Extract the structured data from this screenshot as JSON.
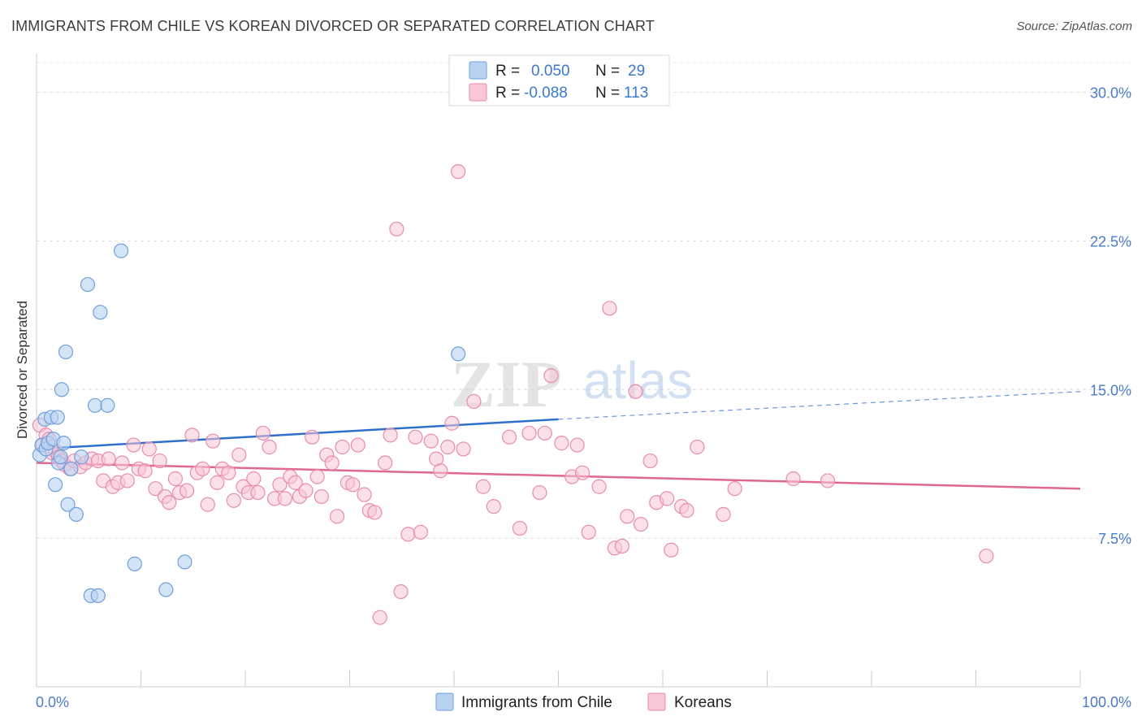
{
  "header": {
    "title": "IMMIGRANTS FROM CHILE VS KOREAN DIVORCED OR SEPARATED CORRELATION CHART",
    "source": "Source: ZipAtlas.com"
  },
  "watermark": {
    "zip": "ZIP",
    "atlas": "atlas"
  },
  "legend": {
    "rows": [
      {
        "r_label": "R =",
        "r_value": "0.050",
        "n_label": "N =",
        "n_value": "29"
      },
      {
        "r_label": "R =",
        "r_value": "-0.088",
        "n_label": "N =",
        "n_value": "113"
      }
    ]
  },
  "bottom_legend": {
    "items": [
      "Immigrants from Chile",
      "Koreans"
    ]
  },
  "chart_data": {
    "type": "scatter",
    "xlabel": "",
    "ylabel": "Divorced or Separated",
    "xlim": [
      0,
      100
    ],
    "ylim": [
      0,
      31.5
    ],
    "x_tick_labels": [
      "0.0%",
      "100.0%"
    ],
    "y_ticks": [
      7.5,
      15,
      22.5,
      30
    ],
    "y_tick_labels": [
      "7.5%",
      "15.0%",
      "22.5%",
      "30.0%"
    ],
    "grid": true,
    "legend_position": "top-center",
    "colors": {
      "chile_fill": "#b8d2f2",
      "chile_stroke": "#6f9fdc",
      "chile_line": "#2f6fcc",
      "korean_fill": "#f8c6d6",
      "korean_stroke": "#e88cab",
      "korean_line": "#e06794"
    },
    "series": [
      {
        "name": "Immigrants from Chile",
        "trend": {
          "x0": 0,
          "y0": 12.0,
          "x1": 50,
          "y1": 13.5,
          "dash_to": 100,
          "dash_y": 14.9
        },
        "points": [
          [
            0.3,
            11.7
          ],
          [
            0.5,
            12.2
          ],
          [
            0.8,
            13.5
          ],
          [
            0.9,
            12.0
          ],
          [
            1.1,
            12.3
          ],
          [
            1.4,
            13.6
          ],
          [
            1.6,
            12.5
          ],
          [
            1.8,
            10.2
          ],
          [
            2.0,
            13.6
          ],
          [
            2.1,
            11.3
          ],
          [
            2.3,
            11.6
          ],
          [
            2.4,
            15.0
          ],
          [
            2.6,
            12.3
          ],
          [
            2.8,
            16.9
          ],
          [
            3.0,
            9.2
          ],
          [
            3.3,
            11.0
          ],
          [
            3.8,
            8.7
          ],
          [
            4.3,
            11.6
          ],
          [
            4.9,
            20.3
          ],
          [
            5.2,
            4.6
          ],
          [
            5.6,
            14.2
          ],
          [
            5.9,
            4.6
          ],
          [
            6.1,
            18.9
          ],
          [
            6.8,
            14.2
          ],
          [
            8.1,
            22.0
          ],
          [
            9.4,
            6.2
          ],
          [
            12.4,
            4.9
          ],
          [
            14.2,
            6.3
          ],
          [
            40.4,
            16.8
          ]
        ]
      },
      {
        "name": "Koreans",
        "trend": {
          "x0": 0,
          "y0": 11.3,
          "x1": 100,
          "y1": 10.0
        },
        "points": [
          [
            0.3,
            13.2
          ],
          [
            0.6,
            12.2
          ],
          [
            0.9,
            12.7
          ],
          [
            1.2,
            12.5
          ],
          [
            1.5,
            11.8
          ],
          [
            1.8,
            11.9
          ],
          [
            2.1,
            11.6
          ],
          [
            2.4,
            11.4
          ],
          [
            2.7,
            11.2
          ],
          [
            3.2,
            11.0
          ],
          [
            3.6,
            11.4
          ],
          [
            4.2,
            11.1
          ],
          [
            4.7,
            11.3
          ],
          [
            5.3,
            11.5
          ],
          [
            5.9,
            11.4
          ],
          [
            6.4,
            10.4
          ],
          [
            6.9,
            11.5
          ],
          [
            7.3,
            10.1
          ],
          [
            7.8,
            10.3
          ],
          [
            8.2,
            11.3
          ],
          [
            8.7,
            10.4
          ],
          [
            9.3,
            12.2
          ],
          [
            9.8,
            11.0
          ],
          [
            10.4,
            10.9
          ],
          [
            10.8,
            12.0
          ],
          [
            11.4,
            10.0
          ],
          [
            11.8,
            11.4
          ],
          [
            12.3,
            9.6
          ],
          [
            12.7,
            9.3
          ],
          [
            13.3,
            10.5
          ],
          [
            13.7,
            9.8
          ],
          [
            14.4,
            9.9
          ],
          [
            14.9,
            12.7
          ],
          [
            15.4,
            10.8
          ],
          [
            15.9,
            11.0
          ],
          [
            16.4,
            9.2
          ],
          [
            16.9,
            12.4
          ],
          [
            17.3,
            10.3
          ],
          [
            17.8,
            11.0
          ],
          [
            18.4,
            10.8
          ],
          [
            18.9,
            9.4
          ],
          [
            19.4,
            11.7
          ],
          [
            19.8,
            10.1
          ],
          [
            20.3,
            9.8
          ],
          [
            20.8,
            10.5
          ],
          [
            21.2,
            9.8
          ],
          [
            21.7,
            12.8
          ],
          [
            22.3,
            12.1
          ],
          [
            22.8,
            9.5
          ],
          [
            23.3,
            10.2
          ],
          [
            23.8,
            9.5
          ],
          [
            24.3,
            10.6
          ],
          [
            24.8,
            10.3
          ],
          [
            25.2,
            9.6
          ],
          [
            25.8,
            9.9
          ],
          [
            26.4,
            12.6
          ],
          [
            26.9,
            10.6
          ],
          [
            27.3,
            9.6
          ],
          [
            27.8,
            11.7
          ],
          [
            28.3,
            11.3
          ],
          [
            28.8,
            8.6
          ],
          [
            29.3,
            12.1
          ],
          [
            29.8,
            10.3
          ],
          [
            30.3,
            10.2
          ],
          [
            30.8,
            12.2
          ],
          [
            31.4,
            9.7
          ],
          [
            31.9,
            8.9
          ],
          [
            32.4,
            8.8
          ],
          [
            32.9,
            3.5
          ],
          [
            33.4,
            11.3
          ],
          [
            33.9,
            12.7
          ],
          [
            34.5,
            23.1
          ],
          [
            34.9,
            4.8
          ],
          [
            35.6,
            7.7
          ],
          [
            36.3,
            12.6
          ],
          [
            36.8,
            7.8
          ],
          [
            37.8,
            12.4
          ],
          [
            38.3,
            11.5
          ],
          [
            38.7,
            10.9
          ],
          [
            39.4,
            12.1
          ],
          [
            39.8,
            13.3
          ],
          [
            40.4,
            26.0
          ],
          [
            40.9,
            12.0
          ],
          [
            41.9,
            14.4
          ],
          [
            42.8,
            10.1
          ],
          [
            43.8,
            9.1
          ],
          [
            45.3,
            12.6
          ],
          [
            46.3,
            8.0
          ],
          [
            47.2,
            12.8
          ],
          [
            48.2,
            9.8
          ],
          [
            48.7,
            12.8
          ],
          [
            49.3,
            15.7
          ],
          [
            50.3,
            12.3
          ],
          [
            51.3,
            10.6
          ],
          [
            51.8,
            12.2
          ],
          [
            52.3,
            10.8
          ],
          [
            52.9,
            7.8
          ],
          [
            53.9,
            10.1
          ],
          [
            54.9,
            19.1
          ],
          [
            55.4,
            7.0
          ],
          [
            56.1,
            7.1
          ],
          [
            56.6,
            8.6
          ],
          [
            57.4,
            14.9
          ],
          [
            57.9,
            8.2
          ],
          [
            58.8,
            11.4
          ],
          [
            59.4,
            9.3
          ],
          [
            60.4,
            9.5
          ],
          [
            60.8,
            6.9
          ],
          [
            61.8,
            9.1
          ],
          [
            62.3,
            8.9
          ],
          [
            63.3,
            12.1
          ],
          [
            65.8,
            8.7
          ],
          [
            66.9,
            10.0
          ],
          [
            72.5,
            10.5
          ],
          [
            75.8,
            10.4
          ],
          [
            91.0,
            6.6
          ]
        ]
      }
    ]
  }
}
